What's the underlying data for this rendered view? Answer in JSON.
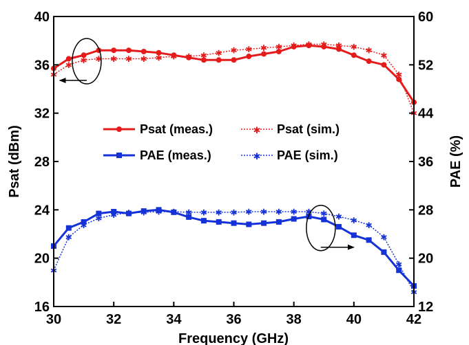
{
  "chart_data": {
    "type": "line",
    "xlabel": "Frequency (GHz)",
    "ylabel_left": "Psat (dBm)",
    "ylabel_right": "PAE (%)",
    "xlim": [
      30,
      42
    ],
    "ylim_left": [
      16,
      40
    ],
    "ylim_right": [
      12,
      60
    ],
    "xticks": [
      30,
      32,
      34,
      36,
      38,
      40,
      42
    ],
    "yticks_left": [
      16,
      20,
      24,
      28,
      32,
      36,
      40
    ],
    "yticks_right": [
      12,
      20,
      28,
      36,
      44,
      52,
      60
    ],
    "grid": false,
    "series": [
      {
        "name": "Psat (meas.)",
        "axis": "left",
        "color": "#e51b1b",
        "style": "solid",
        "marker": "circle",
        "x": [
          30,
          30.5,
          31,
          31.5,
          32,
          32.5,
          33,
          33.5,
          34,
          34.5,
          35,
          35.5,
          36,
          36.5,
          37,
          37.5,
          38,
          38.5,
          39,
          39.5,
          40,
          40.5,
          41,
          41.5,
          42
        ],
        "y": [
          35.7,
          36.5,
          36.8,
          37.2,
          37.2,
          37.2,
          37.1,
          37.0,
          36.8,
          36.6,
          36.4,
          36.4,
          36.4,
          36.7,
          36.9,
          37.1,
          37.5,
          37.6,
          37.5,
          37.3,
          36.8,
          36.3,
          36.0,
          34.8,
          32.9
        ]
      },
      {
        "name": "Psat (sim.)",
        "axis": "left",
        "color": "#e51b1b",
        "style": "dotted",
        "marker": "star",
        "x": [
          30,
          30.5,
          31,
          31.5,
          32,
          32.5,
          33,
          33.5,
          34,
          34.5,
          35,
          35.5,
          36,
          36.5,
          37,
          37.5,
          38,
          38.5,
          39,
          39.5,
          40,
          40.5,
          41,
          41.5,
          42
        ],
        "y": [
          35.2,
          36.0,
          36.4,
          36.5,
          36.5,
          36.5,
          36.5,
          36.6,
          36.7,
          36.7,
          36.8,
          37.0,
          37.2,
          37.3,
          37.4,
          37.5,
          37.6,
          37.7,
          37.7,
          37.6,
          37.5,
          37.2,
          36.8,
          35.2,
          32.0
        ]
      },
      {
        "name": "PAE (meas.)",
        "axis": "right",
        "color": "#1432d8",
        "style": "solid",
        "marker": "square",
        "x": [
          30,
          30.5,
          31,
          31.5,
          32,
          32.5,
          33,
          33.5,
          34,
          34.5,
          35,
          35.5,
          36,
          36.5,
          37,
          37.5,
          38,
          38.5,
          39,
          39.5,
          40,
          40.5,
          41,
          41.5,
          42
        ],
        "y": [
          22.0,
          25.0,
          26.0,
          27.4,
          27.7,
          27.4,
          27.8,
          28.0,
          27.6,
          26.8,
          26.2,
          26.0,
          25.8,
          25.6,
          25.8,
          26.0,
          26.5,
          26.9,
          26.4,
          25.2,
          23.8,
          23.0,
          21.0,
          18.0,
          15.4
        ]
      },
      {
        "name": "PAE (sim.)",
        "axis": "right",
        "color": "#1432d8",
        "style": "dotted",
        "marker": "star",
        "x": [
          30,
          30.5,
          31,
          31.5,
          32,
          32.5,
          33,
          33.5,
          34,
          34.5,
          35,
          35.5,
          36,
          36.5,
          37,
          37.5,
          38,
          38.5,
          39,
          39.5,
          40,
          40.5,
          41,
          41.5,
          42
        ],
        "y": [
          18.0,
          23.5,
          25.5,
          26.6,
          27.2,
          27.5,
          27.6,
          27.7,
          27.7,
          27.6,
          27.6,
          27.6,
          27.6,
          27.7,
          27.7,
          27.7,
          27.7,
          27.7,
          27.4,
          26.9,
          26.3,
          25.5,
          23.5,
          19.0,
          14.4
        ]
      }
    ],
    "annotations": [
      {
        "type": "ellipse-arrow",
        "points_to": "left axis",
        "around_x": 31.1,
        "around_y_axis": "left",
        "around_y": 36.3,
        "arrow_end_x": 30.2
      },
      {
        "type": "ellipse-arrow",
        "points_to": "right axis",
        "around_x": 38.9,
        "around_y_axis": "right",
        "around_y": 25.0,
        "arrow_end_x": 40.0
      }
    ],
    "legend_position": "center-inside"
  }
}
